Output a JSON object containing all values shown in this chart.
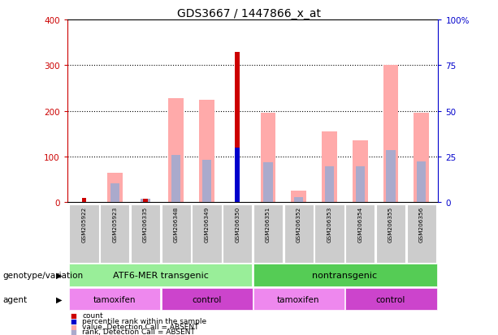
{
  "title": "GDS3667 / 1447866_x_at",
  "samples": [
    "GSM205922",
    "GSM205923",
    "GSM206335",
    "GSM206348",
    "GSM206349",
    "GSM206350",
    "GSM206351",
    "GSM206352",
    "GSM206353",
    "GSM206354",
    "GSM206355",
    "GSM206356"
  ],
  "count_values": [
    10,
    0,
    8,
    0,
    0,
    328,
    0,
    0,
    0,
    0,
    0,
    0
  ],
  "count_color": "#cc0000",
  "percentile_rank_values": [
    0,
    0,
    0,
    0,
    0,
    30,
    0,
    0,
    0,
    0,
    0,
    0
  ],
  "percentile_rank_color": "#0000cc",
  "value_absent": [
    0,
    65,
    0,
    228,
    225,
    0,
    196,
    25,
    155,
    135,
    300,
    196
  ],
  "value_absent_color": "#ffaaaa",
  "rank_absent": [
    0,
    42,
    8,
    103,
    93,
    0,
    88,
    12,
    78,
    78,
    115,
    90
  ],
  "rank_absent_color": "#aaaacc",
  "ylim_left": [
    0,
    400
  ],
  "ylim_right": [
    0,
    100
  ],
  "yticks_left": [
    0,
    100,
    200,
    300,
    400
  ],
  "yticks_right": [
    0,
    25,
    50,
    75,
    100
  ],
  "yticklabels_right": [
    "0",
    "25",
    "50",
    "75",
    "100%"
  ],
  "left_tick_color": "#cc0000",
  "right_tick_color": "#0000cc",
  "grid_color": "#000000",
  "group1_label": "ATF6-MER transgenic",
  "group2_label": "nontransgenic",
  "group1_color": "#99ee99",
  "group2_color": "#55cc55",
  "tamoxifen_color": "#ee88ee",
  "control_color": "#cc44cc",
  "sample_bg_color": "#cccccc",
  "genotype_label": "genotype/variation",
  "agent_label": "agent",
  "legend_items": [
    {
      "label": "count",
      "color": "#cc0000"
    },
    {
      "label": "percentile rank within the sample",
      "color": "#0000cc"
    },
    {
      "label": "value, Detection Call = ABSENT",
      "color": "#ffaaaa"
    },
    {
      "label": "rank, Detection Call = ABSENT",
      "color": "#aaaacc"
    }
  ],
  "fig_width": 6.13,
  "fig_height": 4.14,
  "dpi": 100
}
